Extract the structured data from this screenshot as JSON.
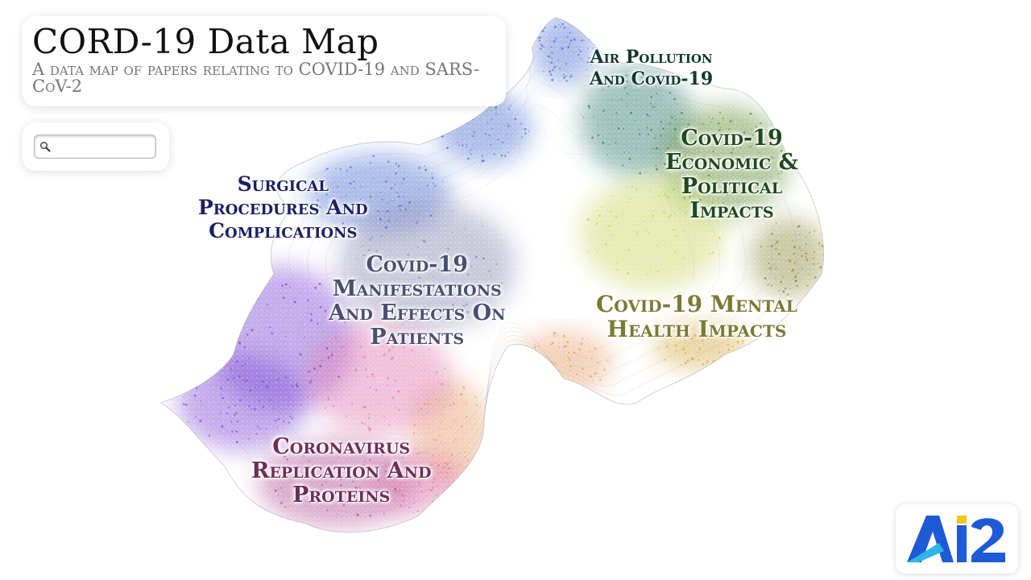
{
  "header": {
    "title": "CORD-19 Data Map",
    "subtitle": "A data map of papers relating to COVID-19 and SARS-CoV-2"
  },
  "search": {
    "value": "",
    "placeholder": "",
    "icon": "search-icon"
  },
  "map_labels": [
    {
      "id": "air-pollution",
      "lines": [
        "Air Pollution",
        "And Covid-19"
      ],
      "color": "#0f3a2e"
    },
    {
      "id": "economic-political",
      "lines": [
        "Covid-19",
        "Economic &",
        "Political",
        "Impacts"
      ],
      "color": "#1f4a1c"
    },
    {
      "id": "surgical",
      "lines": [
        "Surgical",
        "Procedures And",
        "Complications"
      ],
      "color": "#1c1f66"
    },
    {
      "id": "manifestations",
      "lines": [
        "Covid-19",
        "Manifestations",
        "And Effects On",
        "Patients"
      ],
      "color": "#4a4f72"
    },
    {
      "id": "mental-health",
      "lines": [
        "Covid-19 Mental",
        "Health Impacts"
      ],
      "color": "#7a7a34"
    },
    {
      "id": "replication",
      "lines": [
        "Coronavirus",
        "Replication And",
        "Proteins"
      ],
      "color": "#6e2e56"
    }
  ],
  "logo": {
    "text": "AI2",
    "colors": {
      "blue": "#1f5ad6",
      "cyan": "#2bb5e8",
      "yellow": "#f5c518"
    }
  },
  "regions": [
    {
      "name": "blue",
      "color": "#4a6fd1"
    },
    {
      "name": "teal",
      "color": "#2f7a70"
    },
    {
      "name": "green",
      "color": "#5a8a2a"
    },
    {
      "name": "lime",
      "color": "#c8d65a"
    },
    {
      "name": "olive",
      "color": "#8a8a3a"
    },
    {
      "name": "gold",
      "color": "#d4a83a"
    },
    {
      "name": "peach",
      "color": "#e8a06a"
    },
    {
      "name": "pink",
      "color": "#e07ab0"
    },
    {
      "name": "magenta",
      "color": "#b04a90"
    },
    {
      "name": "violet",
      "color": "#7a4ad6"
    },
    {
      "name": "slate",
      "color": "#8a8ab0"
    }
  ]
}
